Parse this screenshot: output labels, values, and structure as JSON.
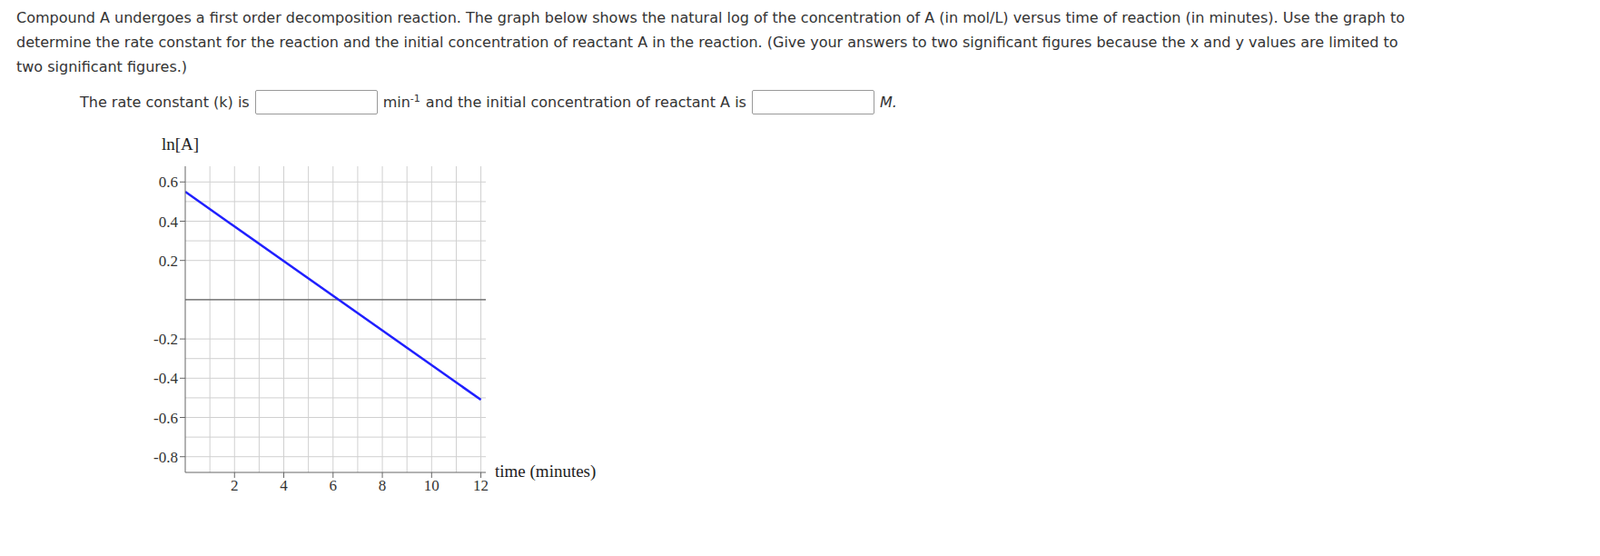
{
  "question": {
    "text": "Compound A undergoes a first order decomposition reaction. The graph below shows the natural log of the concentration of A (in mol/L) versus time of reaction (in minutes). Use the graph to determine the rate constant for the reaction and the initial concentration of reactant A in the reaction. (Give your answers to two significant figures because the x and y values are limited to two significant figures.)",
    "answer_line": {
      "before_k": "The rate constant (k) is",
      "k_unit": "min",
      "k_unit_exponent": "-1",
      "middle": "and the initial concentration of reactant A is",
      "conc_unit": "M."
    }
  },
  "chart_data": {
    "type": "line",
    "ylabel": "ln[A]",
    "xlabel": "time (minutes)",
    "x": [
      0,
      12
    ],
    "values": [
      0.55,
      -0.51
    ],
    "color": "#1f1fff",
    "xlim": [
      0,
      12.2
    ],
    "xticks": [
      2,
      4,
      6,
      8,
      10,
      12
    ],
    "ylim": [
      -0.88,
      0.68
    ],
    "yticks": [
      -0.8,
      -0.6,
      -0.4,
      -0.2,
      0.2,
      0.4,
      0.6
    ],
    "grid": true
  }
}
